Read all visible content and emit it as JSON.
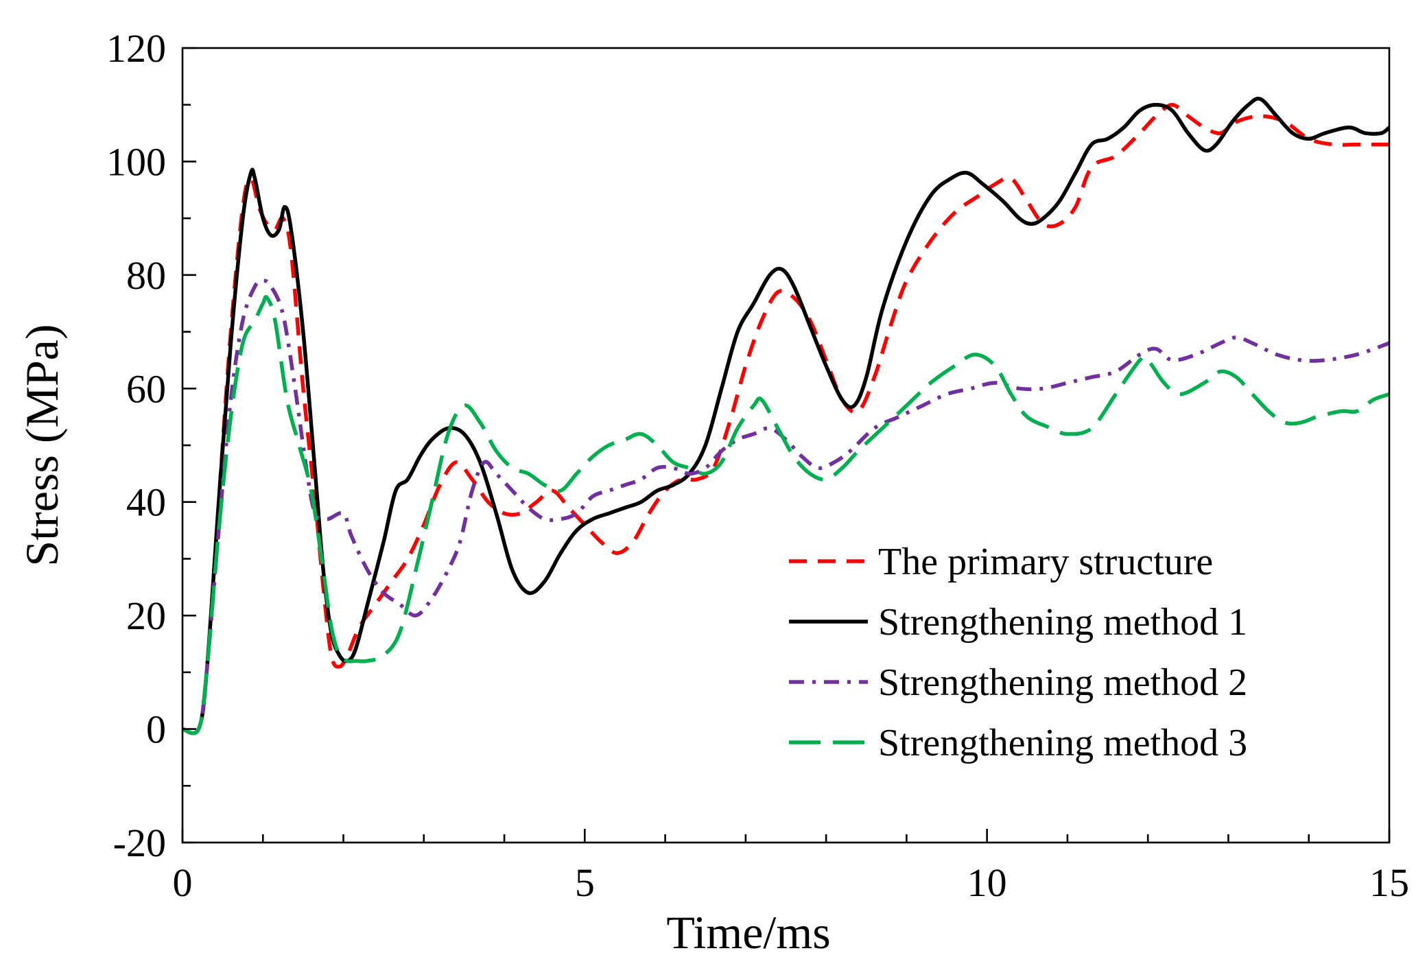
{
  "chart_data": {
    "type": "line",
    "title": "",
    "xlabel": "Time/ms",
    "ylabel": "Stress (MPa)",
    "xlim": [
      0,
      15
    ],
    "ylim": [
      -20,
      120
    ],
    "x_ticks": [
      0,
      5,
      10,
      15
    ],
    "x_tick_labels": [
      "0",
      "5",
      "10",
      "15"
    ],
    "x_minor_step": 1,
    "y_ticks": [
      -20,
      0,
      20,
      40,
      60,
      80,
      100,
      120
    ],
    "y_tick_labels": [
      "-20",
      "0",
      "20",
      "40",
      "60",
      "80",
      "100",
      "120"
    ],
    "y_minor_step": 10,
    "grid": false,
    "legend_position": "lower-right",
    "series": [
      {
        "name": "The primary structure",
        "color": "#ff0000",
        "style": "dashed",
        "points": [
          [
            0,
            0
          ],
          [
            0.2,
            0
          ],
          [
            0.3,
            10
          ],
          [
            0.45,
            40
          ],
          [
            0.6,
            70
          ],
          [
            0.75,
            92
          ],
          [
            0.85,
            97
          ],
          [
            0.95,
            92
          ],
          [
            1.05,
            89
          ],
          [
            1.15,
            88
          ],
          [
            1.25,
            90
          ],
          [
            1.35,
            84
          ],
          [
            1.5,
            60
          ],
          [
            1.65,
            40
          ],
          [
            1.75,
            25
          ],
          [
            1.85,
            13
          ],
          [
            1.95,
            11
          ],
          [
            2.05,
            13
          ],
          [
            2.2,
            18
          ],
          [
            2.4,
            22
          ],
          [
            2.6,
            26
          ],
          [
            2.8,
            30
          ],
          [
            3.0,
            36
          ],
          [
            3.2,
            43
          ],
          [
            3.4,
            47
          ],
          [
            3.6,
            44
          ],
          [
            3.8,
            40
          ],
          [
            4.0,
            38
          ],
          [
            4.2,
            38
          ],
          [
            4.4,
            40
          ],
          [
            4.6,
            42
          ],
          [
            4.8,
            39
          ],
          [
            5.0,
            36
          ],
          [
            5.2,
            33
          ],
          [
            5.4,
            31
          ],
          [
            5.6,
            33
          ],
          [
            5.8,
            38
          ],
          [
            6.0,
            42
          ],
          [
            6.2,
            44
          ],
          [
            6.4,
            44
          ],
          [
            6.6,
            46
          ],
          [
            6.8,
            54
          ],
          [
            7.0,
            64
          ],
          [
            7.2,
            72
          ],
          [
            7.4,
            77
          ],
          [
            7.6,
            76
          ],
          [
            7.8,
            72
          ],
          [
            8.0,
            65
          ],
          [
            8.2,
            58
          ],
          [
            8.4,
            56
          ],
          [
            8.6,
            62
          ],
          [
            8.8,
            71
          ],
          [
            9.0,
            79
          ],
          [
            9.3,
            86
          ],
          [
            9.6,
            91
          ],
          [
            9.9,
            94
          ],
          [
            10.1,
            96
          ],
          [
            10.3,
            97
          ],
          [
            10.5,
            93
          ],
          [
            10.7,
            89
          ],
          [
            10.9,
            89
          ],
          [
            11.1,
            92
          ],
          [
            11.3,
            99
          ],
          [
            11.6,
            101
          ],
          [
            11.9,
            105
          ],
          [
            12.1,
            108
          ],
          [
            12.3,
            110
          ],
          [
            12.5,
            108
          ],
          [
            12.7,
            106
          ],
          [
            12.9,
            105
          ],
          [
            13.1,
            107
          ],
          [
            13.4,
            108
          ],
          [
            13.7,
            107
          ],
          [
            14.0,
            104
          ],
          [
            14.3,
            103
          ],
          [
            14.6,
            103
          ],
          [
            15,
            103
          ]
        ]
      },
      {
        "name": "Strengthening method 1",
        "color": "#000000",
        "style": "solid",
        "points": [
          [
            0,
            0
          ],
          [
            0.2,
            0
          ],
          [
            0.3,
            10
          ],
          [
            0.45,
            40
          ],
          [
            0.6,
            68
          ],
          [
            0.75,
            90
          ],
          [
            0.85,
            98
          ],
          [
            0.9,
            97
          ],
          [
            1.0,
            90
          ],
          [
            1.1,
            87
          ],
          [
            1.2,
            88
          ],
          [
            1.27,
            92
          ],
          [
            1.35,
            88
          ],
          [
            1.5,
            70
          ],
          [
            1.65,
            45
          ],
          [
            1.75,
            28
          ],
          [
            1.85,
            17
          ],
          [
            1.95,
            13
          ],
          [
            2.05,
            12
          ],
          [
            2.15,
            14
          ],
          [
            2.3,
            22
          ],
          [
            2.5,
            33
          ],
          [
            2.65,
            42
          ],
          [
            2.8,
            44
          ],
          [
            2.95,
            48
          ],
          [
            3.1,
            51
          ],
          [
            3.3,
            53
          ],
          [
            3.5,
            52
          ],
          [
            3.7,
            47
          ],
          [
            3.9,
            38
          ],
          [
            4.1,
            28
          ],
          [
            4.3,
            24
          ],
          [
            4.5,
            26
          ],
          [
            4.7,
            31
          ],
          [
            4.9,
            35
          ],
          [
            5.1,
            37
          ],
          [
            5.3,
            38
          ],
          [
            5.5,
            39
          ],
          [
            5.7,
            40
          ],
          [
            5.9,
            42
          ],
          [
            6.1,
            43
          ],
          [
            6.3,
            45
          ],
          [
            6.5,
            50
          ],
          [
            6.7,
            60
          ],
          [
            6.9,
            70
          ],
          [
            7.1,
            75
          ],
          [
            7.3,
            80
          ],
          [
            7.45,
            81
          ],
          [
            7.6,
            78
          ],
          [
            7.8,
            71
          ],
          [
            8.0,
            64
          ],
          [
            8.2,
            58
          ],
          [
            8.35,
            57
          ],
          [
            8.5,
            62
          ],
          [
            8.7,
            74
          ],
          [
            9.0,
            86
          ],
          [
            9.3,
            94
          ],
          [
            9.55,
            97
          ],
          [
            9.75,
            98
          ],
          [
            9.95,
            96
          ],
          [
            10.2,
            93
          ],
          [
            10.4,
            90
          ],
          [
            10.55,
            89
          ],
          [
            10.7,
            90
          ],
          [
            10.9,
            93
          ],
          [
            11.1,
            98
          ],
          [
            11.3,
            103
          ],
          [
            11.5,
            104
          ],
          [
            11.7,
            106
          ],
          [
            11.9,
            109
          ],
          [
            12.1,
            110
          ],
          [
            12.3,
            109
          ],
          [
            12.5,
            105
          ],
          [
            12.7,
            102
          ],
          [
            12.85,
            103
          ],
          [
            13.05,
            107
          ],
          [
            13.25,
            110
          ],
          [
            13.4,
            111
          ],
          [
            13.6,
            108
          ],
          [
            13.8,
            105
          ],
          [
            14.0,
            104
          ],
          [
            14.2,
            105
          ],
          [
            14.5,
            106
          ],
          [
            14.7,
            105
          ],
          [
            14.9,
            105
          ],
          [
            15,
            106
          ]
        ]
      },
      {
        "name": "Strengthening method 2",
        "color": "#7030a0",
        "style": "dashdot",
        "points": [
          [
            0,
            0
          ],
          [
            0.2,
            0
          ],
          [
            0.3,
            10
          ],
          [
            0.45,
            35
          ],
          [
            0.6,
            58
          ],
          [
            0.75,
            72
          ],
          [
            0.9,
            78
          ],
          [
            1.0,
            79
          ],
          [
            1.1,
            78
          ],
          [
            1.25,
            73
          ],
          [
            1.4,
            60
          ],
          [
            1.55,
            45
          ],
          [
            1.65,
            38
          ],
          [
            1.8,
            37
          ],
          [
            2.0,
            38
          ],
          [
            2.1,
            34
          ],
          [
            2.3,
            28
          ],
          [
            2.5,
            24
          ],
          [
            2.7,
            22
          ],
          [
            2.9,
            20
          ],
          [
            3.1,
            23
          ],
          [
            3.3,
            28
          ],
          [
            3.45,
            33
          ],
          [
            3.6,
            42
          ],
          [
            3.75,
            47
          ],
          [
            3.9,
            45
          ],
          [
            4.1,
            42
          ],
          [
            4.3,
            39
          ],
          [
            4.5,
            37
          ],
          [
            4.7,
            37
          ],
          [
            4.9,
            38
          ],
          [
            5.1,
            41
          ],
          [
            5.3,
            42
          ],
          [
            5.5,
            43
          ],
          [
            5.7,
            44
          ],
          [
            5.9,
            46
          ],
          [
            6.1,
            46
          ],
          [
            6.3,
            45
          ],
          [
            6.5,
            46
          ],
          [
            6.7,
            49
          ],
          [
            6.9,
            51
          ],
          [
            7.1,
            52
          ],
          [
            7.3,
            53
          ],
          [
            7.5,
            51
          ],
          [
            7.7,
            48
          ],
          [
            7.9,
            46
          ],
          [
            8.1,
            47
          ],
          [
            8.3,
            49
          ],
          [
            8.6,
            53
          ],
          [
            8.9,
            55
          ],
          [
            9.2,
            57
          ],
          [
            9.5,
            59
          ],
          [
            9.8,
            60
          ],
          [
            10.1,
            61
          ],
          [
            10.4,
            60
          ],
          [
            10.7,
            60
          ],
          [
            11.0,
            61
          ],
          [
            11.3,
            62
          ],
          [
            11.6,
            63
          ],
          [
            11.9,
            66
          ],
          [
            12.1,
            67
          ],
          [
            12.3,
            65
          ],
          [
            12.6,
            66
          ],
          [
            12.9,
            68
          ],
          [
            13.1,
            69
          ],
          [
            13.3,
            68
          ],
          [
            13.6,
            66
          ],
          [
            13.9,
            65
          ],
          [
            14.2,
            65
          ],
          [
            14.6,
            66
          ],
          [
            15,
            68
          ]
        ]
      },
      {
        "name": "Strengthening method 3",
        "color": "#00b050",
        "style": "longdash",
        "points": [
          [
            0,
            0
          ],
          [
            0.2,
            0
          ],
          [
            0.3,
            10
          ],
          [
            0.45,
            35
          ],
          [
            0.6,
            55
          ],
          [
            0.75,
            68
          ],
          [
            0.9,
            72
          ],
          [
            1.0,
            75
          ],
          [
            1.05,
            76
          ],
          [
            1.15,
            72
          ],
          [
            1.3,
            58
          ],
          [
            1.45,
            50
          ],
          [
            1.6,
            42
          ],
          [
            1.75,
            28
          ],
          [
            1.85,
            18
          ],
          [
            1.95,
            13
          ],
          [
            2.05,
            12
          ],
          [
            2.15,
            12
          ],
          [
            2.3,
            12
          ],
          [
            2.5,
            13
          ],
          [
            2.7,
            17
          ],
          [
            2.9,
            28
          ],
          [
            3.1,
            40
          ],
          [
            3.3,
            52
          ],
          [
            3.5,
            57
          ],
          [
            3.7,
            54
          ],
          [
            3.9,
            49
          ],
          [
            4.1,
            46
          ],
          [
            4.3,
            45
          ],
          [
            4.5,
            43
          ],
          [
            4.7,
            42
          ],
          [
            4.9,
            45
          ],
          [
            5.1,
            48
          ],
          [
            5.3,
            50
          ],
          [
            5.5,
            51
          ],
          [
            5.7,
            52
          ],
          [
            5.9,
            50
          ],
          [
            6.1,
            47
          ],
          [
            6.3,
            46
          ],
          [
            6.5,
            45
          ],
          [
            6.7,
            47
          ],
          [
            6.9,
            53
          ],
          [
            7.1,
            57
          ],
          [
            7.2,
            58
          ],
          [
            7.4,
            53
          ],
          [
            7.6,
            48
          ],
          [
            7.8,
            45
          ],
          [
            8.0,
            44
          ],
          [
            8.2,
            46
          ],
          [
            8.4,
            49
          ],
          [
            8.7,
            53
          ],
          [
            9.0,
            57
          ],
          [
            9.3,
            61
          ],
          [
            9.6,
            64
          ],
          [
            9.85,
            66
          ],
          [
            10.1,
            64
          ],
          [
            10.3,
            59
          ],
          [
            10.5,
            55
          ],
          [
            10.8,
            53
          ],
          [
            11.0,
            52
          ],
          [
            11.3,
            53
          ],
          [
            11.6,
            59
          ],
          [
            11.9,
            65
          ],
          [
            12.0,
            65
          ],
          [
            12.2,
            61
          ],
          [
            12.4,
            59
          ],
          [
            12.7,
            61
          ],
          [
            12.9,
            63
          ],
          [
            13.1,
            62
          ],
          [
            13.3,
            59
          ],
          [
            13.5,
            56
          ],
          [
            13.7,
            54
          ],
          [
            13.9,
            54
          ],
          [
            14.1,
            55
          ],
          [
            14.4,
            56
          ],
          [
            14.6,
            56
          ],
          [
            14.8,
            58
          ],
          [
            15,
            59
          ]
        ]
      }
    ]
  }
}
